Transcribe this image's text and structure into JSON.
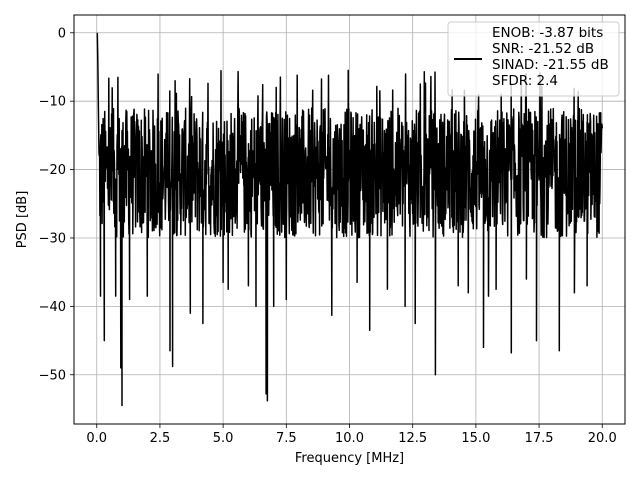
{
  "chart_data": {
    "type": "line",
    "title": "",
    "xlabel": "Frequency [MHz]",
    "ylabel": "PSD [dB]",
    "xlim": [
      -0.9,
      20.9
    ],
    "ylim": [
      -57.2,
      2.6
    ],
    "xticks": [
      0.0,
      2.5,
      5.0,
      7.5,
      10.0,
      12.5,
      15.0,
      17.5,
      20.0
    ],
    "xtick_labels": [
      "0.0",
      "2.5",
      "5.0",
      "7.5",
      "10.0",
      "12.5",
      "15.0",
      "17.5",
      "20.0"
    ],
    "yticks": [
      0,
      -10,
      -20,
      -30,
      -40,
      -50
    ],
    "ytick_labels": [
      "0",
      "−10",
      "−20",
      "−30",
      "−40",
      "−50"
    ],
    "grid": true,
    "legend_position": "top-right",
    "line_color": "#000000",
    "series": [
      {
        "name_lines": [
          "ENOB: -3.87 bits",
          "SNR: -21.52 dB",
          "SINAD: -21.55 dB",
          "SFDR: 2.4"
        ],
        "noise": {
          "x_start": 0.0,
          "x_end": 20.0,
          "samples": 1600,
          "typical_min": -30,
          "typical_max": -11,
          "peak_max": -5.5
        },
        "dips": [
          {
            "x": 0.15,
            "y": -38.5
          },
          {
            "x": 0.3,
            "y": -45.0
          },
          {
            "x": 0.75,
            "y": -38.5
          },
          {
            "x": 1.0,
            "y": -54.5
          },
          {
            "x": 0.95,
            "y": -49.0
          },
          {
            "x": 1.3,
            "y": -39.0
          },
          {
            "x": 2.0,
            "y": -38.5
          },
          {
            "x": 2.9,
            "y": -46.5
          },
          {
            "x": 3.0,
            "y": -48.8
          },
          {
            "x": 3.7,
            "y": -41.0
          },
          {
            "x": 4.2,
            "y": -42.5
          },
          {
            "x": 5.0,
            "y": -36.5
          },
          {
            "x": 5.2,
            "y": -37.5
          },
          {
            "x": 6.0,
            "y": -37.0
          },
          {
            "x": 6.3,
            "y": -40.0
          },
          {
            "x": 6.7,
            "y": -52.8
          },
          {
            "x": 6.75,
            "y": -53.8
          },
          {
            "x": 7.0,
            "y": -40.0
          },
          {
            "x": 7.5,
            "y": -39.0
          },
          {
            "x": 9.3,
            "y": -41.3
          },
          {
            "x": 10.3,
            "y": -36.5
          },
          {
            "x": 10.8,
            "y": -43.5
          },
          {
            "x": 11.5,
            "y": -37.5
          },
          {
            "x": 12.2,
            "y": -40.0
          },
          {
            "x": 12.6,
            "y": -42.5
          },
          {
            "x": 13.4,
            "y": -50.0
          },
          {
            "x": 14.3,
            "y": -37.0
          },
          {
            "x": 14.7,
            "y": -38.0
          },
          {
            "x": 15.3,
            "y": -46.0
          },
          {
            "x": 15.5,
            "y": -38.5
          },
          {
            "x": 15.8,
            "y": -37.5
          },
          {
            "x": 16.4,
            "y": -46.8
          },
          {
            "x": 17.0,
            "y": -36.0
          },
          {
            "x": 17.4,
            "y": -45.0
          },
          {
            "x": 18.3,
            "y": -46.5
          },
          {
            "x": 18.9,
            "y": -38.0
          },
          {
            "x": 19.4,
            "y": -37.0
          }
        ],
        "peaks": [
          {
            "x": 0.02,
            "y": 0.0
          },
          {
            "x": 0.04,
            "y": -4.0
          },
          {
            "x": 0.06,
            "y": -10.0
          },
          {
            "x": 9.95,
            "y": -5.5
          },
          {
            "x": 11.2,
            "y": -8.5
          },
          {
            "x": 12.8,
            "y": -7.5
          },
          {
            "x": 7.1,
            "y": -8.0
          },
          {
            "x": 16.0,
            "y": -9.0
          }
        ]
      }
    ]
  }
}
